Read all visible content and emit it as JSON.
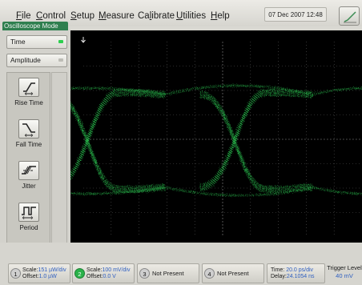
{
  "menu": {
    "items": [
      {
        "prefix": "",
        "mnemonic": "F",
        "rest": "ile"
      },
      {
        "prefix": "",
        "mnemonic": "C",
        "rest": "ontrol"
      },
      {
        "prefix": "",
        "mnemonic": "S",
        "rest": "etup"
      },
      {
        "prefix": "",
        "mnemonic": "M",
        "rest": "easure"
      },
      {
        "prefix": "Ca",
        "mnemonic": "l",
        "rest": "ibrate"
      },
      {
        "prefix": "",
        "mnemonic": "U",
        "rest": "tilities"
      },
      {
        "prefix": "",
        "mnemonic": "H",
        "rest": "elp"
      }
    ]
  },
  "mode_label": "Oscilloscope Mode",
  "datetime": "07 Dec 2007  12:48",
  "left_panel": {
    "selector1": {
      "label": "Time",
      "indicator_color": "#2ccf4e"
    },
    "selector2": {
      "label": "Amplitude",
      "indicator_color": "#bdbdb6"
    },
    "buttons": [
      {
        "label": "Rise Time",
        "icon": "rise-time-icon"
      },
      {
        "label": "Fall Time",
        "icon": "fall-time-icon"
      },
      {
        "label": "Jitter",
        "icon": "jitter-icon"
      },
      {
        "label": "Period",
        "icon": "period-icon"
      }
    ]
  },
  "display": {
    "trace_color": "#2fd457",
    "background": "#000000"
  },
  "channels": [
    {
      "number": "1",
      "active": false,
      "scale": "151 µW/div",
      "offset": "1.0 µW"
    },
    {
      "number": "2",
      "active": true,
      "scale": "100 mV/div",
      "offset": "0.0 V"
    },
    {
      "number": "3",
      "active": false,
      "status": "Not Present"
    },
    {
      "number": "4",
      "active": false,
      "status": "Not Present"
    }
  ],
  "labels": {
    "scale": "Scale:",
    "offset": "Offset:",
    "time": "Time:",
    "delay": "Delay:"
  },
  "timebase": {
    "time": "20.0 ps/div",
    "delay": "24.1054 ns"
  },
  "trigger": {
    "label": "Trigger Level",
    "value": "40 mV"
  }
}
